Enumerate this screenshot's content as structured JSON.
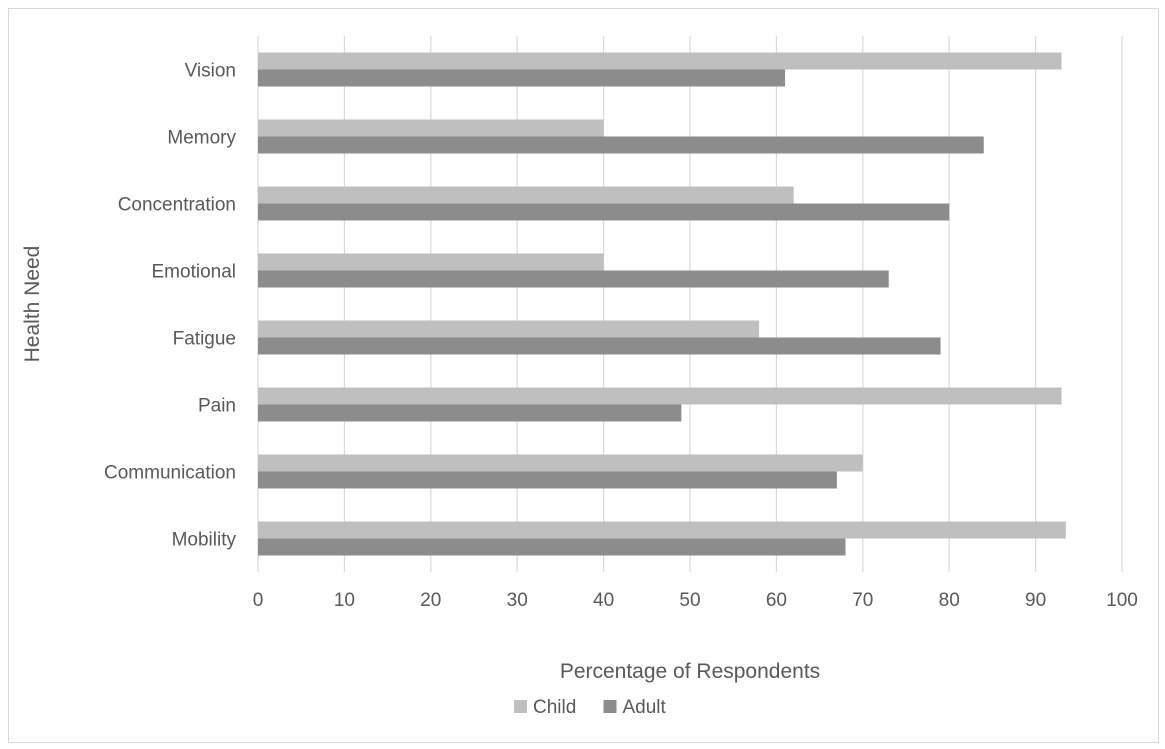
{
  "chart_data": {
    "type": "bar",
    "orientation": "horizontal",
    "categories": [
      "Vision",
      "Memory",
      "Concentration",
      "Emotional",
      "Fatigue",
      "Pain",
      "Communication",
      "Mobility"
    ],
    "series": [
      {
        "name": "Child",
        "color": "#bfbfbf",
        "values": [
          93,
          40,
          62,
          40,
          58,
          93,
          70,
          93.5
        ]
      },
      {
        "name": "Adult",
        "color": "#8c8c8c",
        "values": [
          61,
          84,
          80,
          73,
          79,
          49,
          67,
          68
        ]
      }
    ],
    "xlabel": "Percentage of Respondents",
    "ylabel": "Health Need",
    "xlim": [
      0,
      100
    ],
    "xticks": [
      "0",
      "10",
      "20",
      "30",
      "40",
      "50",
      "60",
      "70",
      "80",
      "90",
      "100"
    ],
    "grid": true,
    "legend_position": "bottom"
  }
}
